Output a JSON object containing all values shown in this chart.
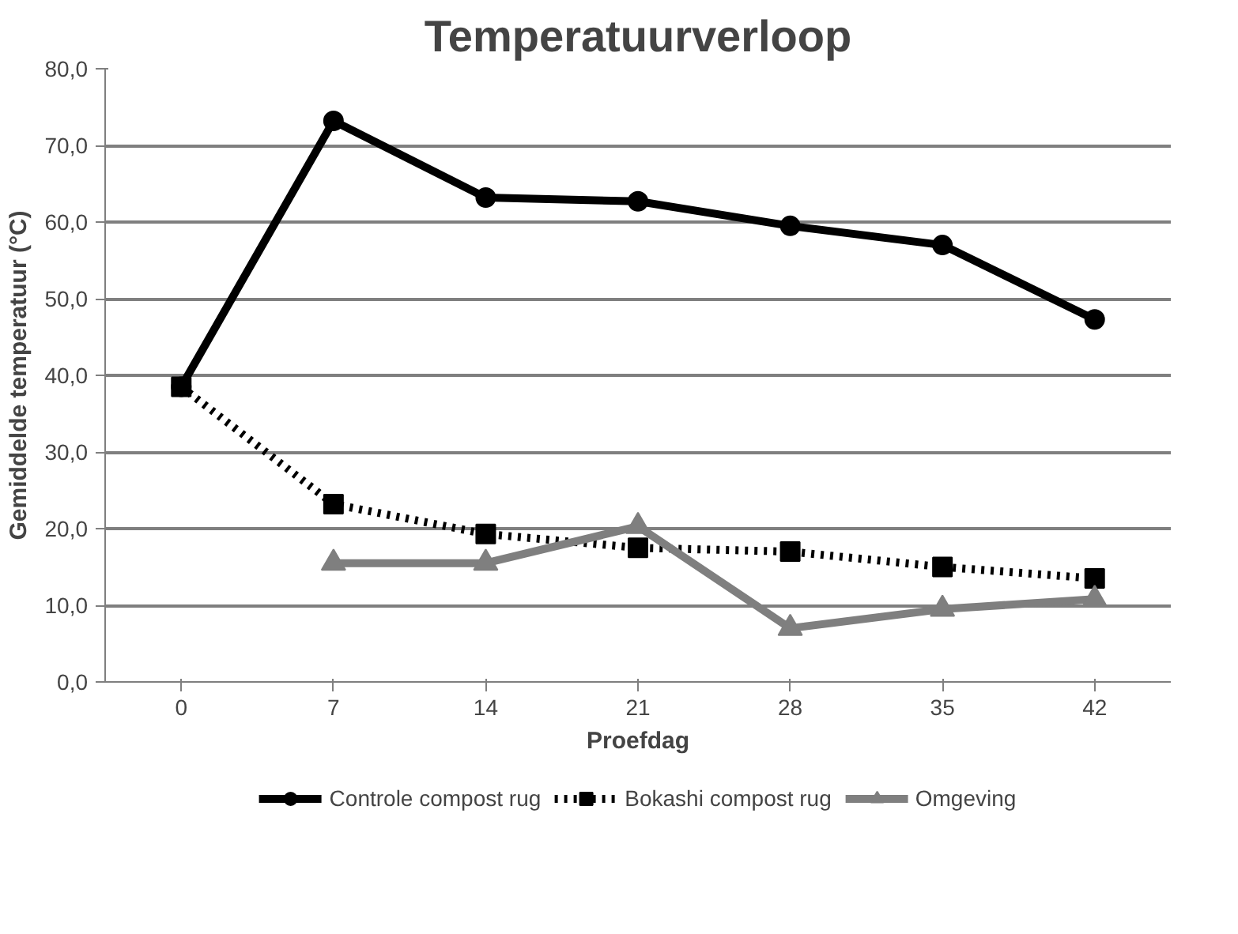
{
  "chart_data": {
    "type": "line",
    "title": "Temperatuurverloop",
    "xlabel": "Proefdag",
    "ylabel": "Gemiddelde temperatuur (°C)",
    "categories": [
      "0",
      "7",
      "14",
      "21",
      "28",
      "35",
      "42"
    ],
    "series": [
      {
        "name": "Controle compost rug",
        "color": "#000000",
        "marker": "circle",
        "line_style": "solid",
        "values": [
          38.5,
          73.2,
          63.2,
          62.7,
          59.5,
          57.0,
          47.3
        ]
      },
      {
        "name": "Bokashi compost rug",
        "color": "#000000",
        "marker": "square",
        "line_style": "dotted",
        "values": [
          38.5,
          23.2,
          19.3,
          17.5,
          17.0,
          15.0,
          13.5
        ]
      },
      {
        "name": "Omgeving",
        "color": "#7f7f7f",
        "marker": "triangle",
        "line_style": "solid",
        "values": [
          null,
          15.5,
          15.5,
          20.3,
          7.0,
          9.5,
          10.8
        ]
      }
    ],
    "ylim": [
      0,
      80
    ],
    "yticks": [
      {
        "value": 0,
        "label": "0,0"
      },
      {
        "value": 10,
        "label": "10,0"
      },
      {
        "value": 20,
        "label": "20,0"
      },
      {
        "value": 30,
        "label": "30,0"
      },
      {
        "value": 40,
        "label": "40,0"
      },
      {
        "value": 50,
        "label": "50,0"
      },
      {
        "value": 60,
        "label": "60,0"
      },
      {
        "value": 70,
        "label": "70,0"
      },
      {
        "value": 80,
        "label": "80,0"
      }
    ],
    "grid": "y",
    "legend": "bottom"
  }
}
